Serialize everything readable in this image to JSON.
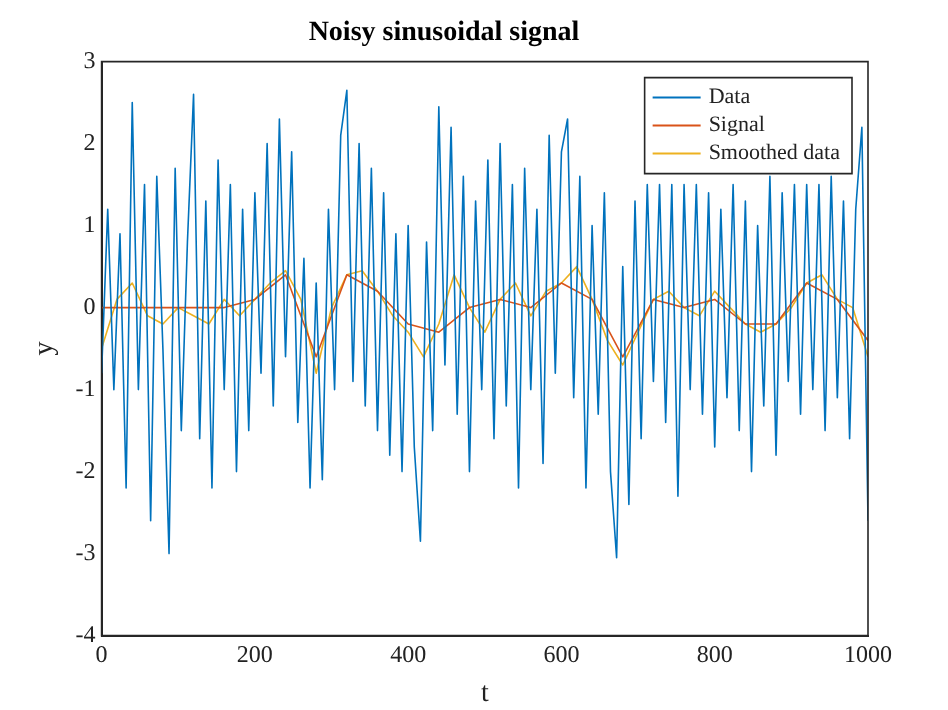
{
  "chart_data": {
    "type": "line",
    "title": "Noisy sinusoidal signal",
    "xlabel": "t",
    "ylabel": "y",
    "xlim": [
      0,
      1000
    ],
    "xticks": [
      0,
      200,
      400,
      600,
      800,
      1000
    ],
    "ylim": [
      -4,
      3
    ],
    "yticks": [
      -4,
      -3,
      -2,
      -1,
      0,
      1,
      2,
      3
    ],
    "grid": false,
    "legend": "top right",
    "marker": "none",
    "line_style": "solid",
    "series": [
      {
        "name": "Data",
        "color": "#0072bd",
        "x": [
          0,
          8,
          16,
          24,
          32,
          40,
          48,
          56,
          64,
          72,
          80,
          88,
          96,
          104,
          112,
          120,
          128,
          136,
          144,
          152,
          160,
          168,
          176,
          184,
          192,
          200,
          208,
          216,
          224,
          232,
          240,
          248,
          256,
          264,
          272,
          280,
          288,
          296,
          304,
          312,
          320,
          328,
          336,
          344,
          352,
          360,
          368,
          376,
          384,
          392,
          400,
          408,
          416,
          424,
          432,
          440,
          448,
          456,
          464,
          472,
          480,
          488,
          496,
          504,
          512,
          520,
          528,
          536,
          544,
          552,
          560,
          568,
          576,
          584,
          592,
          600,
          608,
          616,
          624,
          632,
          640,
          648,
          656,
          664,
          672,
          680,
          688,
          696,
          704,
          712,
          720,
          728,
          736,
          744,
          752,
          760,
          768,
          776,
          784,
          792,
          800,
          808,
          816,
          824,
          832,
          840,
          848,
          856,
          864,
          872,
          880,
          888,
          896,
          904,
          912,
          920,
          928,
          936,
          944,
          952,
          960,
          968,
          976,
          984,
          992,
          1000
        ],
        "values": [
          -0.8,
          1.2,
          -1.0,
          0.9,
          -2.2,
          2.5,
          -1.0,
          1.5,
          -2.6,
          1.6,
          -0.5,
          -3.0,
          1.7,
          -1.5,
          0.8,
          2.6,
          -1.6,
          1.3,
          -2.2,
          1.8,
          -1.0,
          1.5,
          -2.0,
          1.2,
          -1.5,
          1.4,
          -0.8,
          2.0,
          -1.2,
          2.3,
          -0.6,
          1.9,
          -1.4,
          0.6,
          -2.2,
          0.3,
          -2.1,
          1.2,
          -1.0,
          2.1,
          2.65,
          -0.9,
          2.0,
          -1.2,
          1.7,
          -1.5,
          1.4,
          -1.8,
          0.9,
          -2.0,
          1.0,
          -1.7,
          -2.85,
          0.8,
          -1.5,
          2.45,
          -0.7,
          2.2,
          -1.3,
          1.6,
          -2.0,
          1.3,
          -1.0,
          1.8,
          -1.6,
          2.0,
          -1.2,
          1.5,
          -2.2,
          1.7,
          -1.0,
          1.2,
          -1.9,
          2.1,
          -0.8,
          1.9,
          2.3,
          -1.1,
          1.6,
          -2.2,
          1.0,
          -1.3,
          1.4,
          -2.0,
          -3.05,
          0.5,
          -2.4,
          1.3,
          -1.6,
          1.5,
          -0.9,
          1.5,
          -1.4,
          1.5,
          -2.3,
          1.5,
          -1.0,
          1.5,
          -1.3,
          1.4,
          -1.7,
          1.2,
          -1.1,
          1.5,
          -1.5,
          1.3,
          -2.0,
          1.0,
          -1.2,
          1.6,
          -1.8,
          1.4,
          -0.9,
          1.5,
          -1.3,
          1.5,
          -1.0,
          1.5,
          -1.5,
          1.6,
          -1.1,
          1.3,
          -1.6,
          1.2,
          2.2,
          -2.6
        ]
      },
      {
        "name": "Signal",
        "color": "#d95319",
        "x": [
          0,
          40,
          80,
          120,
          160,
          200,
          240,
          280,
          320,
          360,
          400,
          440,
          480,
          520,
          560,
          600,
          640,
          680,
          720,
          760,
          800,
          840,
          880,
          920,
          960,
          1000
        ],
        "values": [
          0,
          0,
          0,
          0,
          0,
          0.1,
          0.4,
          -0.6,
          0.4,
          0.2,
          -0.2,
          -0.3,
          0,
          0.1,
          0,
          0.3,
          0.1,
          -0.6,
          0.1,
          0,
          0.1,
          -0.2,
          -0.2,
          0.3,
          0.1,
          -0.4
        ]
      },
      {
        "name": "Smoothed data",
        "color": "#edb120",
        "x": [
          0,
          20,
          40,
          60,
          80,
          100,
          120,
          140,
          160,
          180,
          200,
          220,
          240,
          260,
          280,
          300,
          320,
          340,
          360,
          380,
          400,
          420,
          440,
          460,
          480,
          500,
          520,
          540,
          560,
          580,
          600,
          620,
          640,
          660,
          680,
          700,
          720,
          740,
          760,
          780,
          800,
          820,
          840,
          860,
          880,
          900,
          920,
          940,
          960,
          980,
          1000
        ],
        "values": [
          -0.5,
          0.1,
          0.3,
          -0.1,
          -0.2,
          0,
          -0.1,
          -0.2,
          0.1,
          -0.1,
          0.1,
          0.3,
          0.45,
          0.1,
          -0.8,
          0,
          0.4,
          0.45,
          0.2,
          -0.1,
          -0.3,
          -0.6,
          -0.2,
          0.4,
          0,
          -0.3,
          0.1,
          0.3,
          -0.1,
          0.2,
          0.3,
          0.5,
          0.1,
          -0.4,
          -0.7,
          -0.3,
          0.1,
          0.2,
          0,
          -0.1,
          0.2,
          0,
          -0.2,
          -0.3,
          -0.2,
          0,
          0.3,
          0.4,
          0.1,
          0,
          -0.6
        ]
      }
    ]
  }
}
